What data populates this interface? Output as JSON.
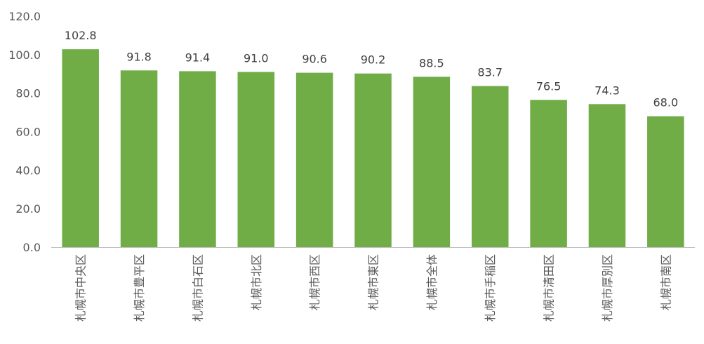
{
  "chart_data": {
    "type": "bar",
    "title": "",
    "xlabel": "",
    "ylabel": "",
    "ylim": [
      0,
      120
    ],
    "yticks": [
      "0.0",
      "20.0",
      "40.0",
      "60.0",
      "80.0",
      "100.0",
      "120.0"
    ],
    "grid": false,
    "legend": "none",
    "bar_color": "#70ad47",
    "categories": [
      "札幌市中央区",
      "札幌市豊平区",
      "札幌市白石区",
      "札幌市北区",
      "札幌市西区",
      "札幌市東区",
      "札幌市全体",
      "札幌市手稲区",
      "札幌市清田区",
      "札幌市厚別区",
      "札幌市南区"
    ],
    "values": [
      102.8,
      91.8,
      91.4,
      91.0,
      90.6,
      90.2,
      88.5,
      83.7,
      76.5,
      74.3,
      68.0
    ],
    "data_labels": [
      "102.8",
      "91.8",
      "91.4",
      "91.0",
      "90.6",
      "90.2",
      "88.5",
      "83.7",
      "76.5",
      "74.3",
      "68.0"
    ]
  }
}
